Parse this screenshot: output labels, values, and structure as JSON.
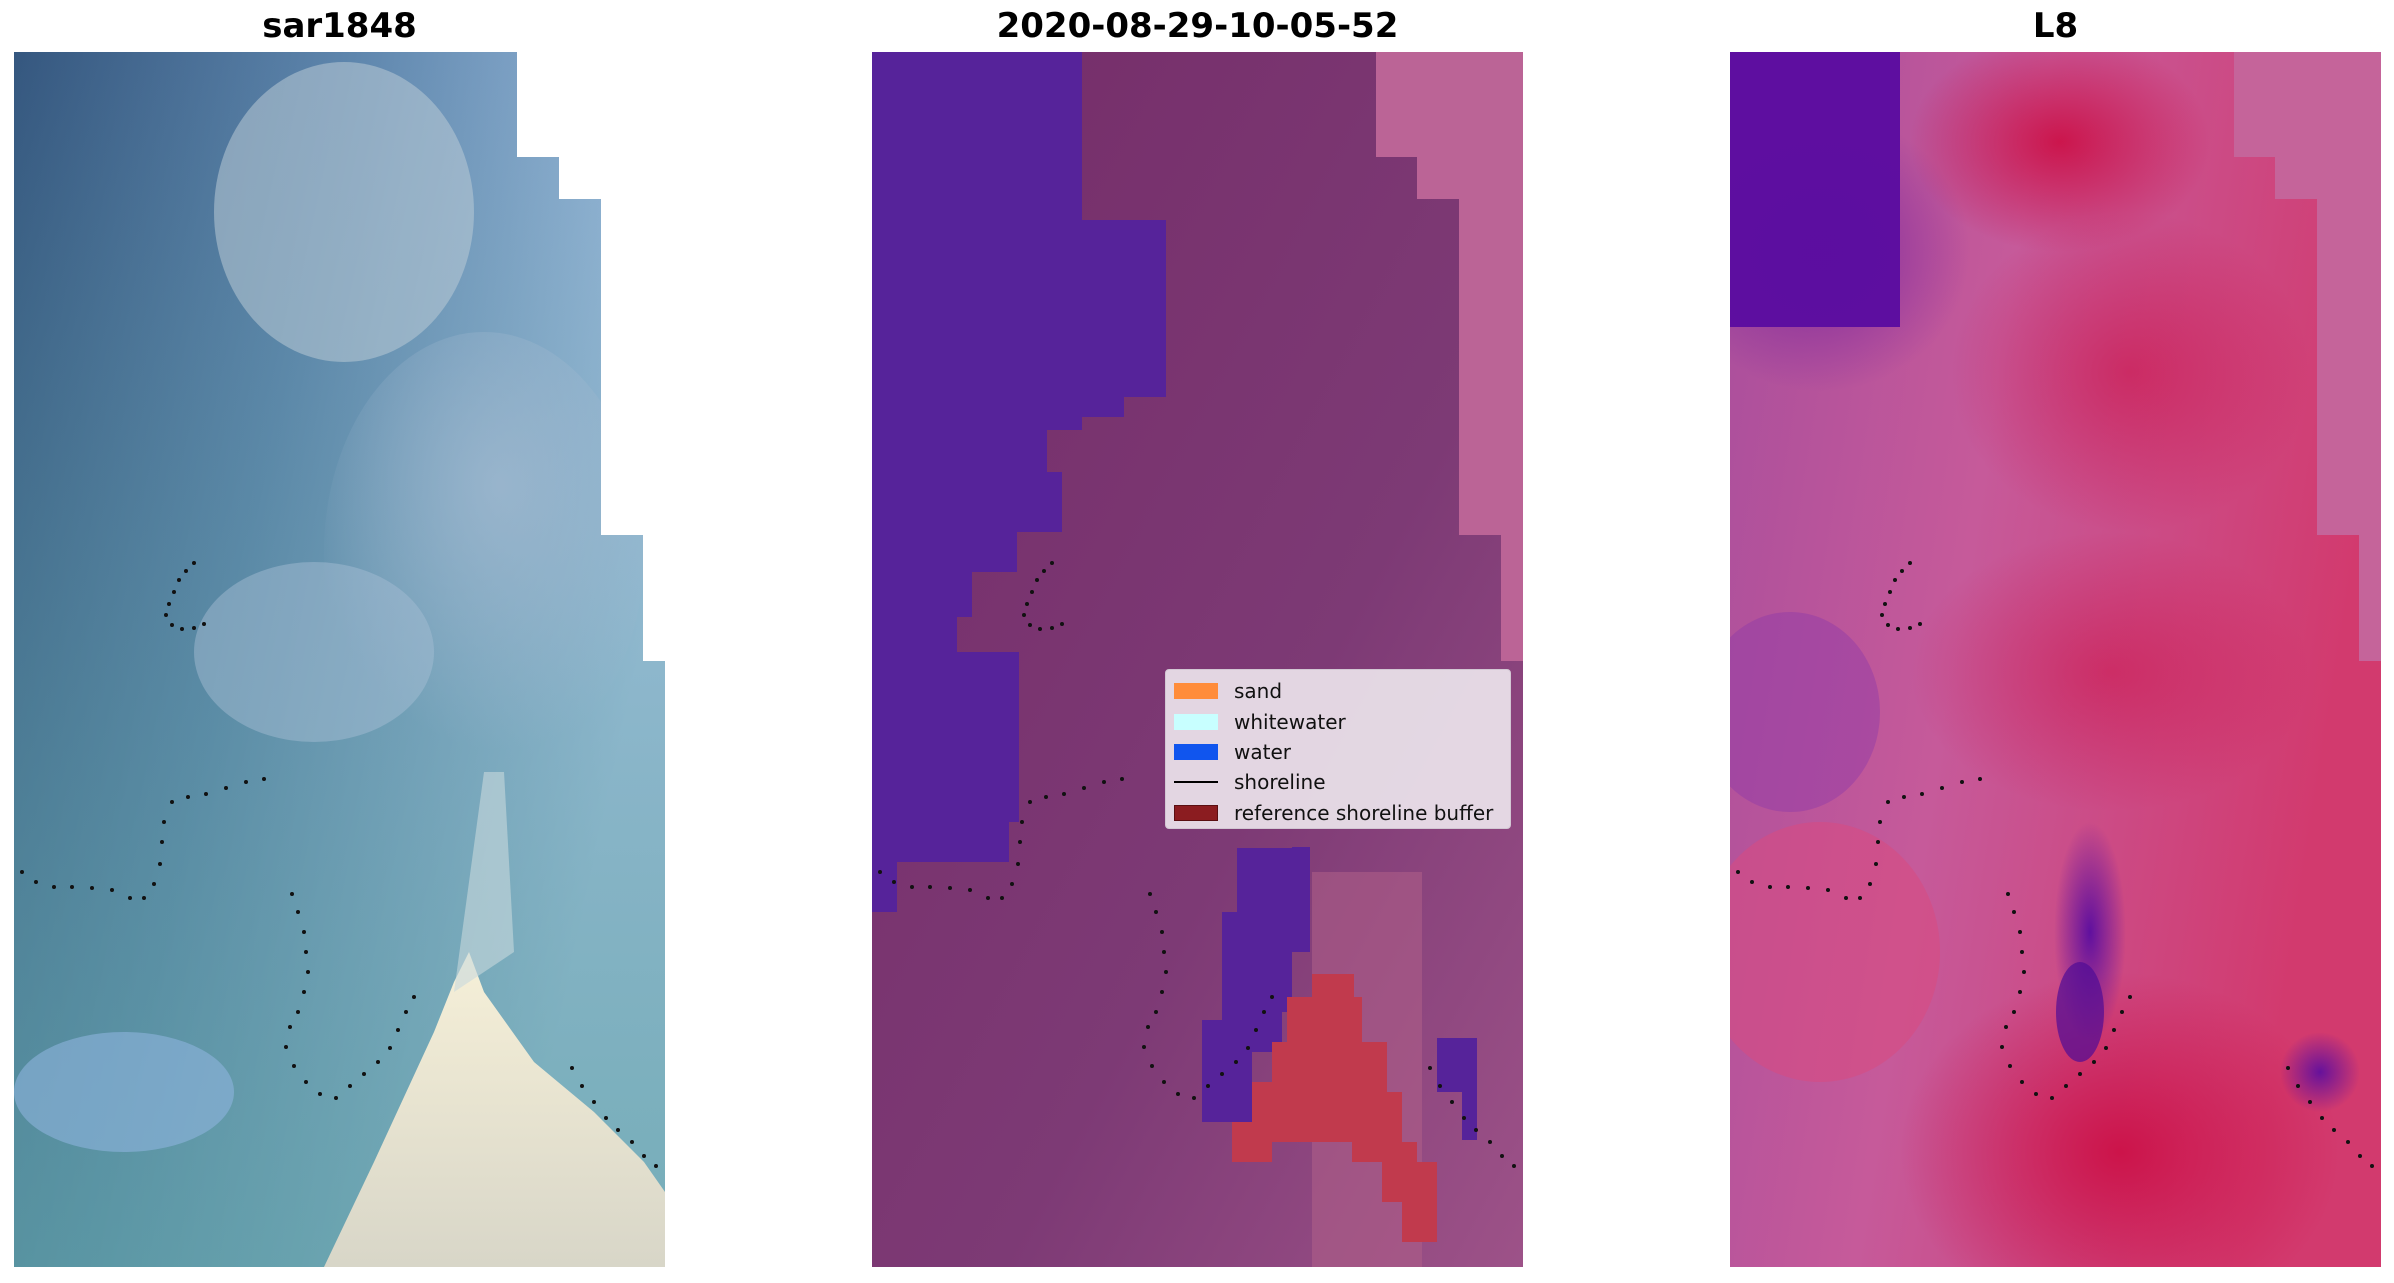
{
  "panels": [
    {
      "title": "sar1848",
      "image": "RGB satellite tile: blue-green water with cloud haze, white sand spit at bottom"
    },
    {
      "title": "2020-08-29-10-05-52",
      "image": "classification overlay: water mask in indigo over purple reference buffer"
    },
    {
      "title": "L8",
      "image": "MNDWI index map in purple-to-crimson colors"
    }
  ],
  "legend": {
    "items": [
      {
        "label": "sand",
        "color": "#ff8c3a",
        "kind": "patch"
      },
      {
        "label": "whitewater",
        "color": "#c8ffff",
        "kind": "patch"
      },
      {
        "label": "water",
        "color": "#1055ee",
        "kind": "patch"
      },
      {
        "label": "shoreline",
        "color": "#000000",
        "kind": "line"
      },
      {
        "label": "reference shoreline buffer",
        "color": "#8b1c20",
        "kind": "patch"
      }
    ]
  }
}
